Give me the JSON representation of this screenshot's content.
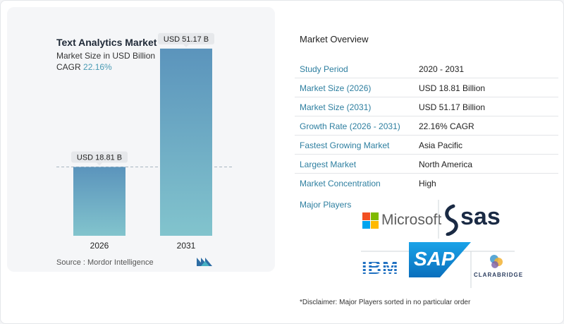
{
  "chart": {
    "title": "Text Analytics Market",
    "subtitle": "Market Size in USD Billion",
    "cagr_label": "CAGR",
    "cagr_value": "22.16%",
    "source": "Source :  Mordor Intelligence",
    "bar_labels": [
      "USD 18.81 B",
      "USD 51.17 B"
    ],
    "colors": {
      "bar_top": "#5b94bc",
      "bar_bottom": "#82c4cd",
      "dash": "#a9b6c0",
      "callout": "#e6e8eb"
    }
  },
  "chart_data": {
    "type": "bar",
    "categories": [
      "2026",
      "2031"
    ],
    "values": [
      18.81,
      51.17
    ],
    "title": "Text Analytics Market",
    "subtitle": "Market Size in USD Billion",
    "xlabel": "",
    "ylabel": "",
    "ylim": [
      0,
      55
    ],
    "grid": false
  },
  "overview": {
    "title": "Market Overview",
    "rows": [
      {
        "label": "Study Period",
        "value": "2020 - 2031"
      },
      {
        "label": "Market Size (2026)",
        "value": "USD 18.81 Billion"
      },
      {
        "label": "Market Size (2031)",
        "value": "USD 51.17 Billion"
      },
      {
        "label": "Growth Rate (2026 - 2031)",
        "value": "22.16% CAGR"
      },
      {
        "label": "Fastest Growing Market",
        "value": "Asia Pacific"
      },
      {
        "label": "Largest Market",
        "value": "North America"
      },
      {
        "label": "Market Concentration",
        "value": "High"
      }
    ],
    "major_players_label": "Major Players",
    "players": {
      "microsoft": "Microsoft",
      "sas": "sas",
      "ibm": "IBM",
      "sap": "SAP",
      "clarabridge": "CLARABRIDGE"
    },
    "disclaimer": "*Disclaimer: Major Players sorted in no particular order"
  }
}
